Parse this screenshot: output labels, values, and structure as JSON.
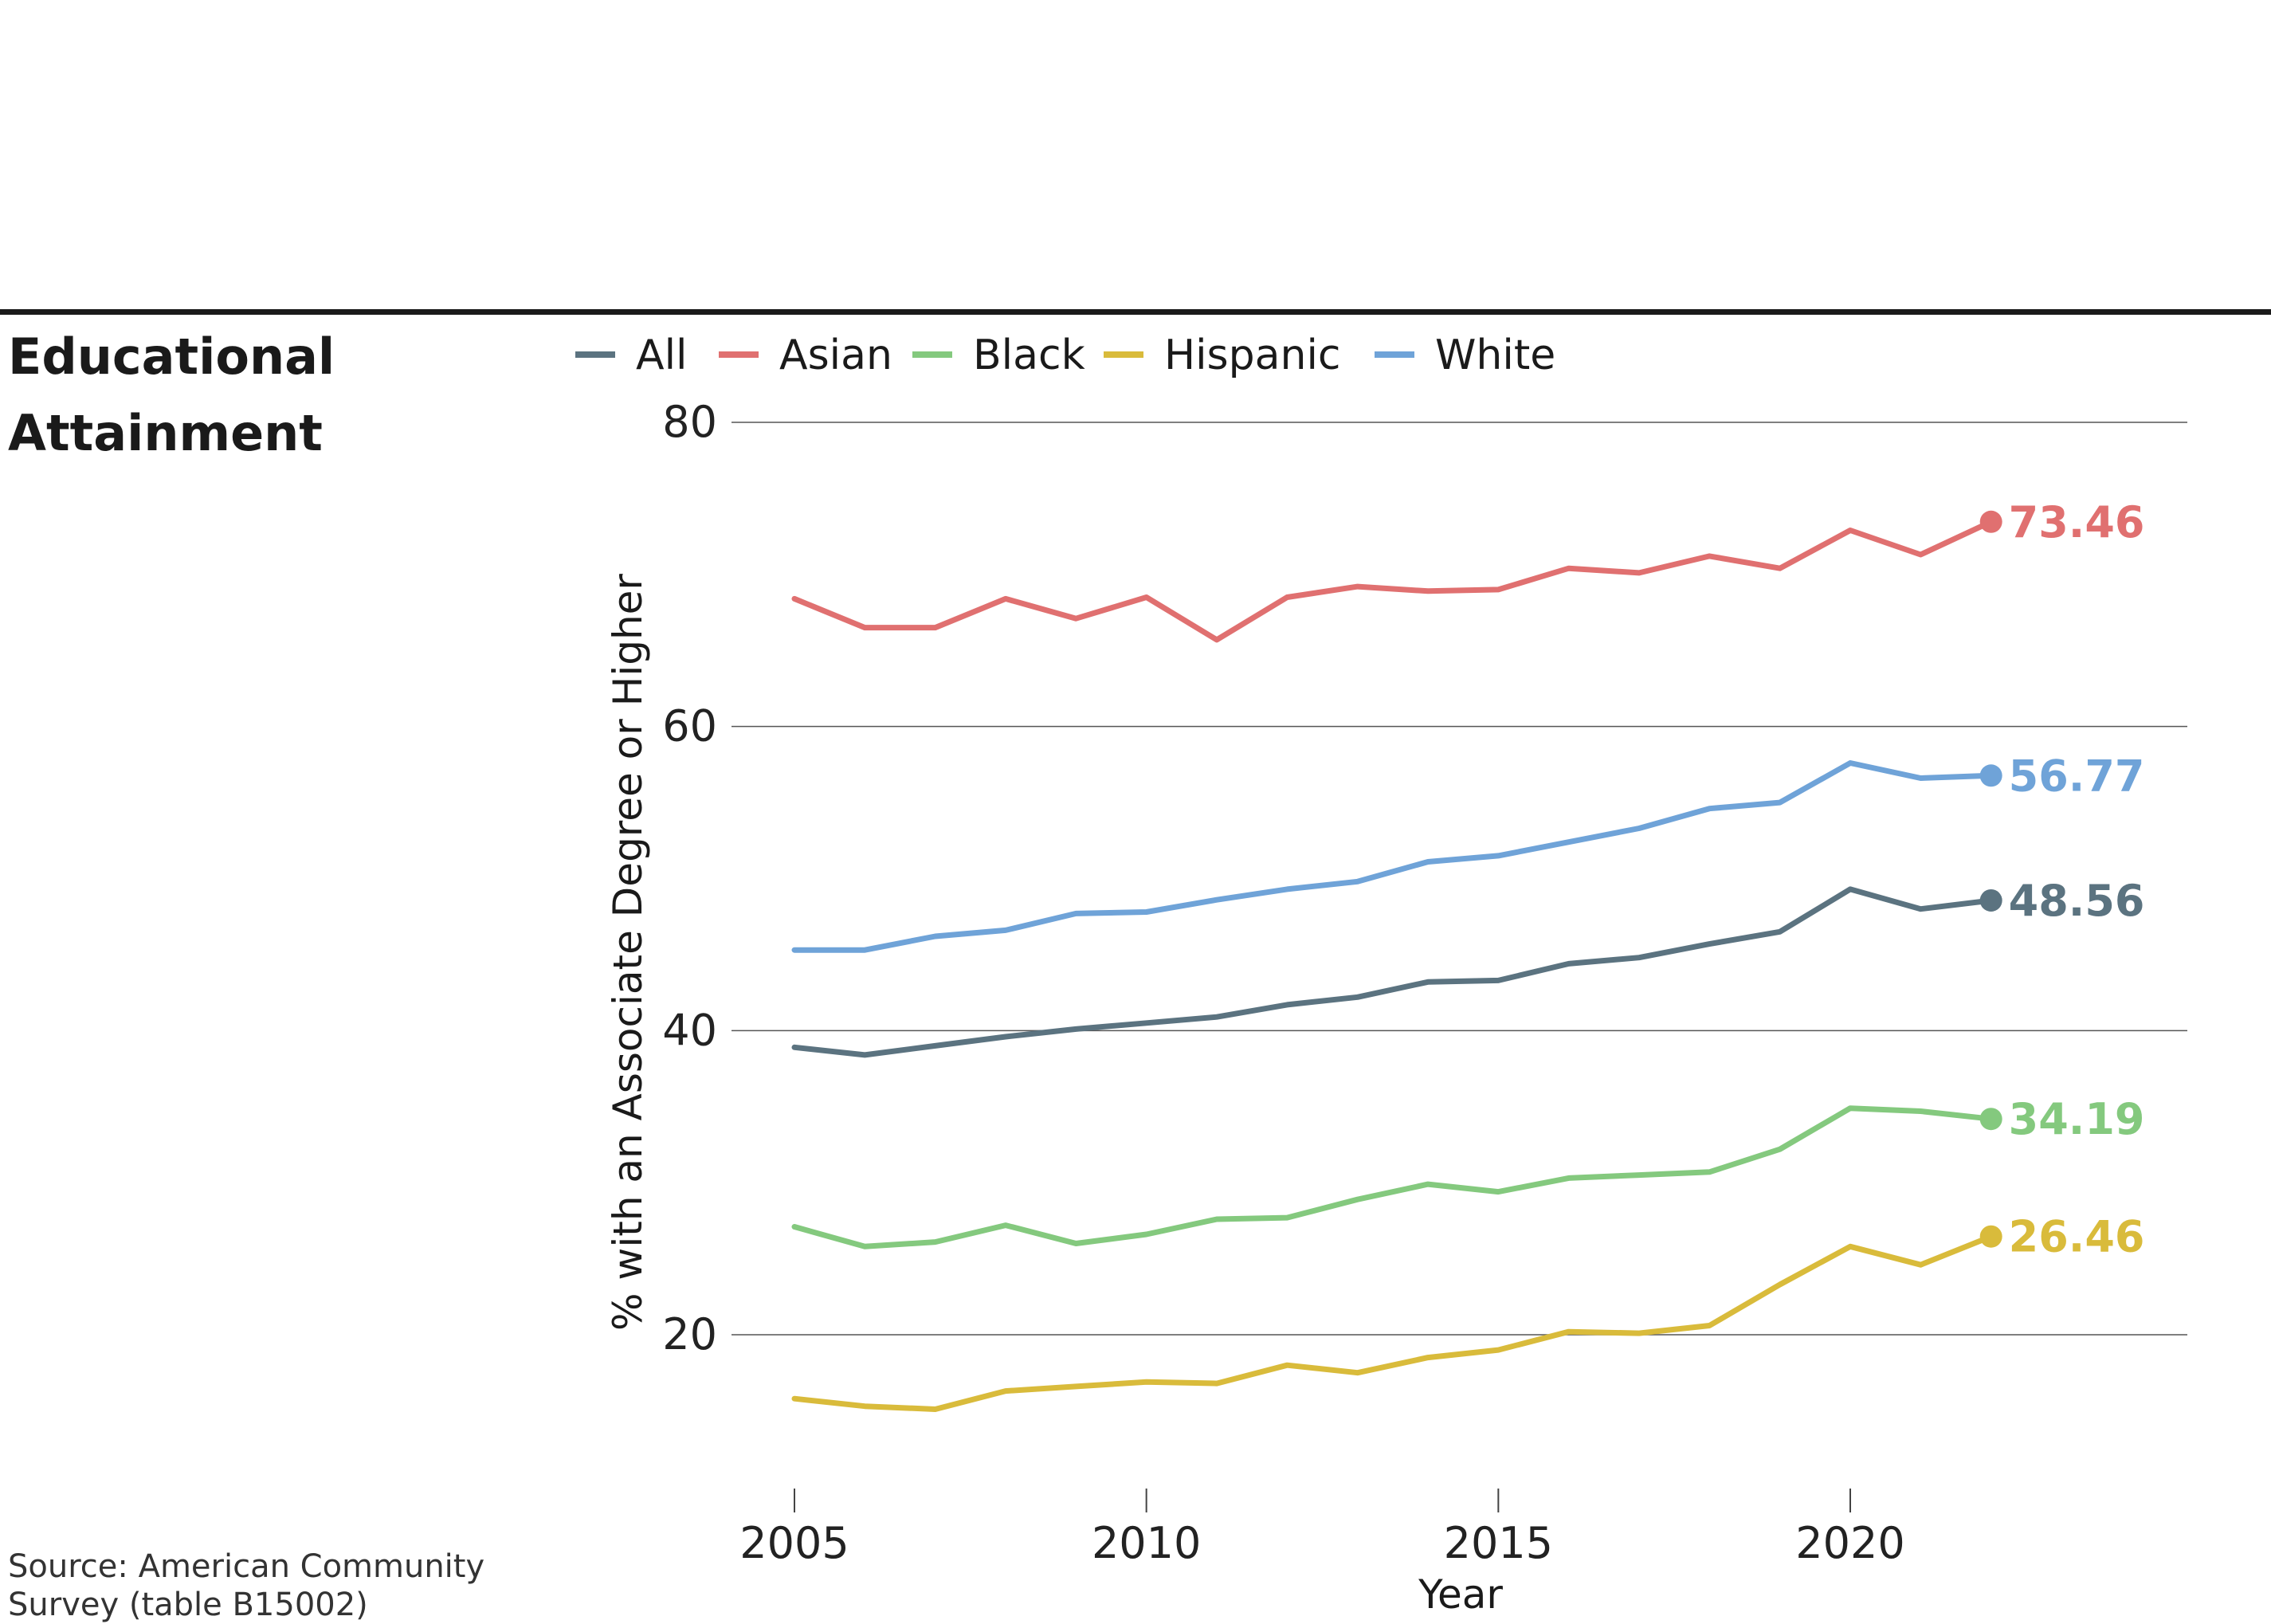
{
  "header": {
    "title": "Educational\nAttainment"
  },
  "source": "Source: American Community\nSurvey (table B15002)",
  "chart_data": {
    "type": "line",
    "xlabel": "Year",
    "ylabel": "% with an Associate Degree or Higher",
    "xlim": [
      2004,
      2025
    ],
    "ylim": [
      10,
      80
    ],
    "xticks": [
      2005,
      2010,
      2015,
      2020
    ],
    "xtick_labels": [
      "2005",
      "2010",
      "2015",
      "2020"
    ],
    "yticks": [
      20,
      40,
      60,
      80
    ],
    "ytick_labels": [
      "20",
      "40",
      "60",
      "80"
    ],
    "grid": "horizontal",
    "legend_position": "top",
    "x": [
      2005,
      2006,
      2007,
      2008,
      2009,
      2010,
      2011,
      2012,
      2013,
      2014,
      2015,
      2016,
      2017,
      2018,
      2019,
      2020,
      2021,
      2022
    ],
    "series": [
      {
        "name": "All",
        "color": "#5b7380",
        "end_label": "48.56",
        "values": [
          38.9,
          38.4,
          39.0,
          39.6,
          40.1,
          40.5,
          40.9,
          41.7,
          42.2,
          43.2,
          43.3,
          44.4,
          44.8,
          45.7,
          46.5,
          49.3,
          48.0,
          48.56
        ]
      },
      {
        "name": "Asian",
        "color": "#e07070",
        "end_label": "73.46",
        "values": [
          68.4,
          66.5,
          66.5,
          68.4,
          67.1,
          68.5,
          65.7,
          68.5,
          69.2,
          68.9,
          69.0,
          70.4,
          70.1,
          71.2,
          70.4,
          72.9,
          71.3,
          73.46
        ]
      },
      {
        "name": "Black",
        "color": "#84c97e",
        "end_label": "34.19",
        "values": [
          27.1,
          25.8,
          26.1,
          27.2,
          26.0,
          26.6,
          27.6,
          27.7,
          28.9,
          29.9,
          29.4,
          30.3,
          30.5,
          30.7,
          32.2,
          34.9,
          34.7,
          34.19
        ]
      },
      {
        "name": "Hispanic",
        "color": "#d9bb3b",
        "end_label": "26.46",
        "values": [
          15.8,
          15.3,
          15.1,
          16.3,
          16.6,
          16.9,
          16.8,
          18.0,
          17.5,
          18.5,
          19.0,
          20.2,
          20.1,
          20.6,
          23.3,
          25.8,
          24.6,
          26.46
        ]
      },
      {
        "name": "White",
        "color": "#6fa3d8",
        "end_label": "56.77",
        "values": [
          45.3,
          45.3,
          46.2,
          46.6,
          47.7,
          47.8,
          48.6,
          49.3,
          49.8,
          51.1,
          51.5,
          52.4,
          53.3,
          54.6,
          55.0,
          57.6,
          56.6,
          56.77
        ]
      }
    ]
  }
}
